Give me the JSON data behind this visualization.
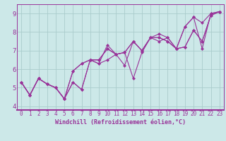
{
  "xlabel": "Windchill (Refroidissement éolien,°C)",
  "background_color": "#cce8e8",
  "grid_color": "#aacccc",
  "line_color": "#993399",
  "xlim": [
    -0.5,
    23.5
  ],
  "ylim": [
    3.8,
    9.5
  ],
  "xticks": [
    0,
    1,
    2,
    3,
    4,
    5,
    6,
    7,
    8,
    9,
    10,
    11,
    12,
    13,
    14,
    15,
    16,
    17,
    18,
    19,
    20,
    21,
    22,
    23
  ],
  "yticks": [
    4,
    5,
    6,
    7,
    8,
    9
  ],
  "series": [
    [
      5.3,
      4.6,
      5.5,
      5.2,
      5.0,
      4.4,
      5.3,
      4.9,
      6.5,
      6.3,
      7.3,
      6.8,
      6.9,
      5.5,
      6.9,
      7.7,
      7.9,
      7.7,
      7.1,
      8.3,
      8.8,
      7.1,
      9.0,
      9.1
    ],
    [
      5.3,
      4.6,
      5.5,
      5.2,
      5.0,
      4.4,
      5.3,
      4.9,
      6.5,
      6.3,
      6.5,
      6.8,
      6.2,
      7.5,
      7.0,
      7.7,
      7.5,
      7.7,
      7.1,
      8.3,
      8.8,
      8.5,
      9.0,
      9.1
    ],
    [
      5.3,
      4.6,
      5.5,
      5.2,
      5.0,
      4.4,
      5.9,
      6.3,
      6.5,
      6.5,
      7.1,
      6.8,
      6.9,
      7.5,
      7.0,
      7.7,
      7.7,
      7.5,
      7.1,
      7.2,
      8.1,
      7.5,
      8.9,
      9.1
    ],
    [
      5.3,
      4.6,
      5.5,
      5.2,
      5.0,
      4.4,
      5.9,
      6.3,
      6.5,
      6.5,
      7.1,
      6.8,
      6.9,
      7.5,
      7.0,
      7.7,
      7.7,
      7.5,
      7.1,
      7.2,
      8.1,
      7.5,
      8.9,
      9.1
    ]
  ],
  "marker": "D",
  "markersize": 2.0,
  "linewidth": 0.8,
  "tick_fontsize": 5.5,
  "xlabel_fontsize": 6.0
}
